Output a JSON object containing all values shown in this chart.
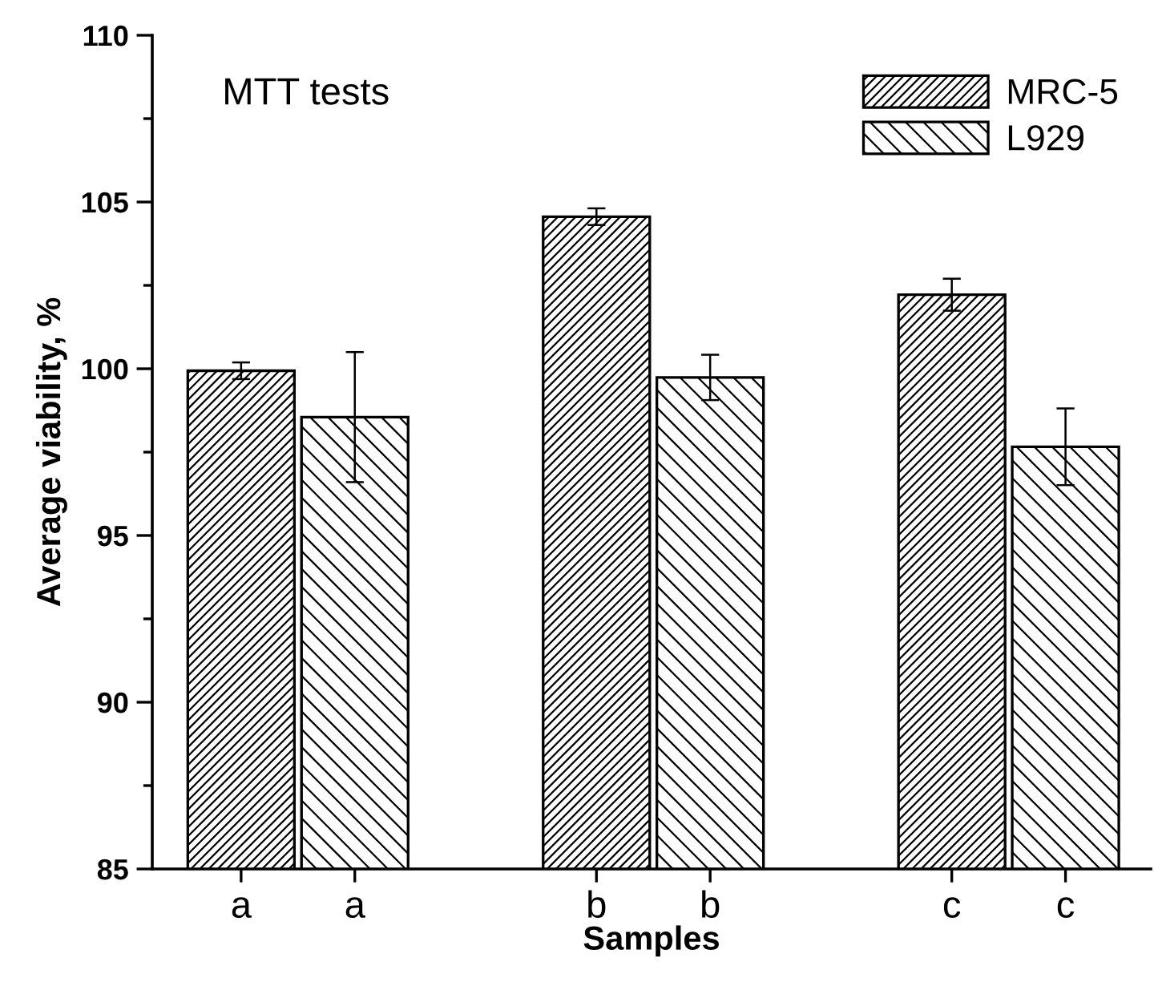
{
  "chart_data": {
    "type": "bar",
    "title": "MTT tests",
    "xlabel": "Samples",
    "ylabel": "Average viability, %",
    "categories": [
      "a",
      "b",
      "c"
    ],
    "series": [
      {
        "name": "MRC-5",
        "values": [
          99.94,
          104.56,
          102.22
        ],
        "errors": [
          0.25,
          0.25,
          0.48
        ]
      },
      {
        "name": "L929",
        "values": [
          98.55,
          99.74,
          97.66
        ],
        "errors": [
          1.95,
          0.68,
          1.15
        ]
      }
    ],
    "ylim": [
      85,
      110
    ],
    "yticks": [
      85,
      90,
      95,
      100,
      105,
      110
    ],
    "grid": false,
    "legend": "top right"
  }
}
